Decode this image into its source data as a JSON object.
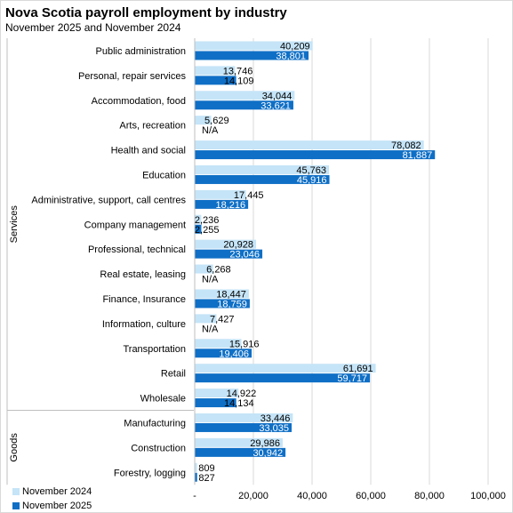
{
  "title": "Nova Scotia payroll employment by industry",
  "subtitle": "November 2025 and November 2024",
  "chart_data": {
    "type": "bar",
    "orientation": "horizontal",
    "categories": [
      "Public administration",
      "Personal, repair services",
      "Accommodation, food",
      "Arts, recreation",
      "Health and social",
      "Education",
      "Administrative, support, call centres",
      "Company management",
      "Professional, technical",
      "Real estate, leasing",
      "Finance, Insurance",
      "Information, culture",
      "Transportation",
      "Retail",
      "Wholesale",
      "Manufacturing",
      "Construction",
      "Forestry, logging"
    ],
    "groups": [
      {
        "name": "Services",
        "count": 15
      },
      {
        "name": "Goods",
        "count": 3
      }
    ],
    "series": [
      {
        "name": "November 2024",
        "color": "#c5e4f7",
        "values": [
          40209,
          13746,
          34044,
          5629,
          78082,
          45763,
          17445,
          2236,
          20928,
          6268,
          18447,
          7427,
          15916,
          61691,
          14922,
          33446,
          29986,
          809
        ],
        "labels": [
          "40,209",
          "13,746",
          "34,044",
          "5,629",
          "78,082",
          "45,763",
          "17,445",
          "2,236",
          "20,928",
          "6,268",
          "18,447",
          "7,427",
          "15,916",
          "61,691",
          "14,922",
          "33,446",
          "29,986",
          "809"
        ]
      },
      {
        "name": "November 2025",
        "color": "#0f6fc6",
        "values": [
          38801,
          14109,
          33621,
          null,
          81887,
          45916,
          18216,
          2255,
          23046,
          null,
          18759,
          null,
          19406,
          59717,
          14134,
          33035,
          30942,
          827
        ],
        "labels": [
          "38,801",
          "14,109",
          "33,621",
          "N/A",
          "81,887",
          "45,916",
          "18,216",
          "2,255",
          "23,046",
          "N/A",
          "18,759",
          "N/A",
          "19,406",
          "59,717",
          "14,134",
          "33,035",
          "30,942",
          "827"
        ]
      }
    ],
    "xlim": [
      0,
      100000
    ],
    "xticks": [
      0,
      20000,
      40000,
      60000,
      80000,
      100000
    ],
    "xtick_labels": [
      "-",
      "20,000",
      "40,000",
      "60,000",
      "80,000",
      "100,000"
    ],
    "grid": true,
    "legend_position": "bottom-left"
  }
}
